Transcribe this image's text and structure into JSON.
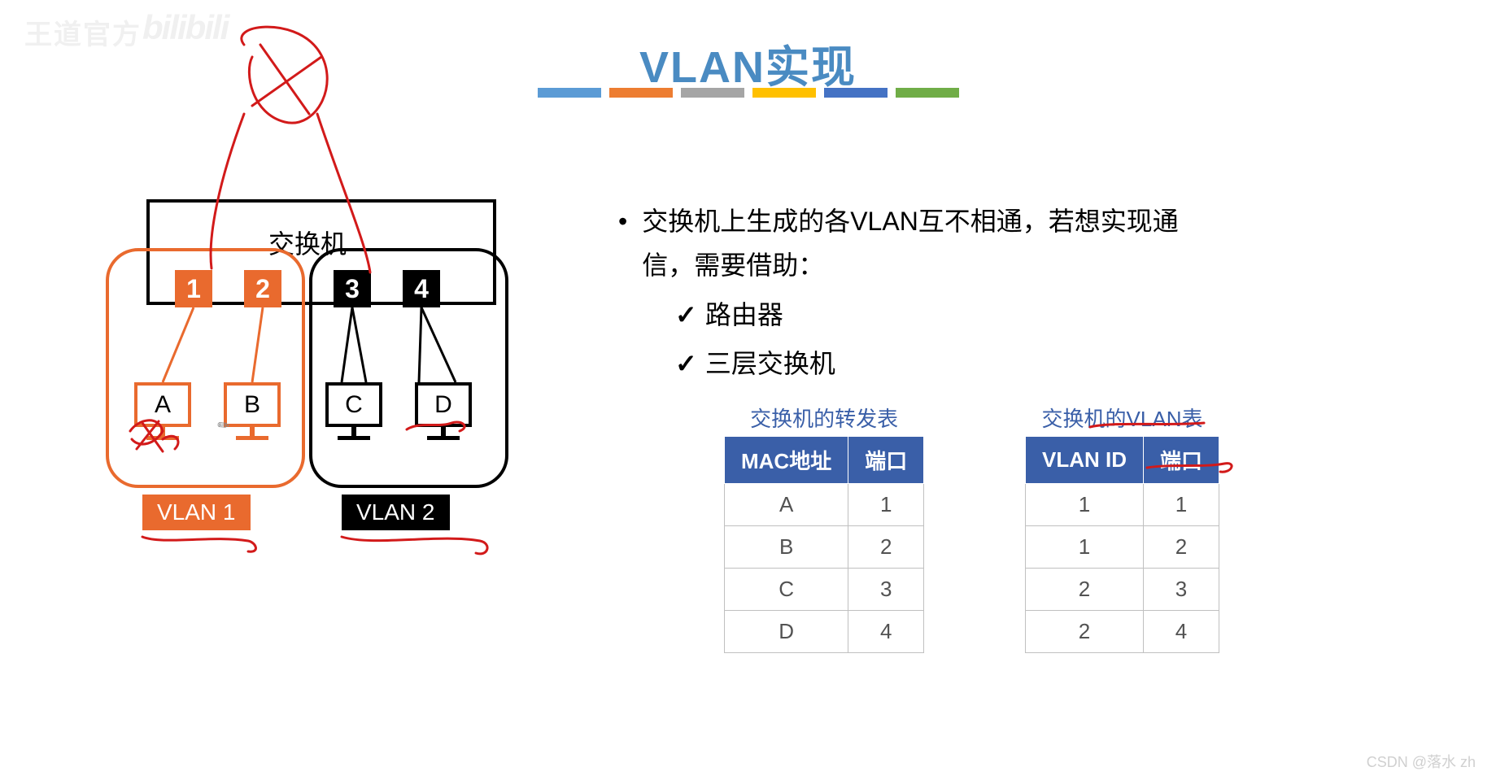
{
  "watermarks": {
    "topleft": "王道官方",
    "bilibili": "bilibili",
    "attribution": "CSDN @落水 zh"
  },
  "title": {
    "en": "VLAN",
    "cn": "实现"
  },
  "colorbar": {
    "colors": [
      "#5b9bd5",
      "#ed7d31",
      "#a5a5a5",
      "#ffc000",
      "#4472c4",
      "#70ad47"
    ]
  },
  "diagram": {
    "switch_label": "交换机",
    "ports": [
      {
        "id": "1",
        "color": "#e96a2e"
      },
      {
        "id": "2",
        "color": "#e96a2e"
      },
      {
        "id": "3",
        "color": "#000000"
      },
      {
        "id": "4",
        "color": "#000000"
      }
    ],
    "hosts": [
      {
        "id": "A",
        "group": 1
      },
      {
        "id": "B",
        "group": 1
      },
      {
        "id": "C",
        "group": 2
      },
      {
        "id": "D",
        "group": 2
      }
    ],
    "vlan_tags": {
      "v1": "VLAN 1",
      "v2": "VLAN 2"
    },
    "group_border_colors": {
      "v1": "#e96a2e",
      "v2": "#000000"
    }
  },
  "text": {
    "main": "交换机上生成的各VLAN互不相通，若想实现通信，需要借助：",
    "checks": [
      "路由器",
      "三层交换机"
    ]
  },
  "tables": {
    "forwarding": {
      "title": "交换机的转发表",
      "columns": [
        "MAC地址",
        "端口"
      ],
      "rows": [
        [
          "A",
          "1"
        ],
        [
          "B",
          "2"
        ],
        [
          "C",
          "3"
        ],
        [
          "D",
          "4"
        ]
      ]
    },
    "vlan": {
      "title": "交换机的VLAN表",
      "columns": [
        "VLAN ID",
        "端口"
      ],
      "rows": [
        [
          "1",
          "1"
        ],
        [
          "1",
          "2"
        ],
        [
          "2",
          "3"
        ],
        [
          "2",
          "4"
        ]
      ]
    }
  },
  "annotations": {
    "stroke": "#d21a1a",
    "width": 3
  }
}
